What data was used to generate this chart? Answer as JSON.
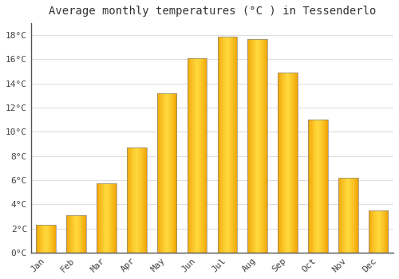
{
  "title": "Average monthly temperatures (°C ) in Tessenderlo",
  "months": [
    "Jan",
    "Feb",
    "Mar",
    "Apr",
    "May",
    "Jun",
    "Jul",
    "Aug",
    "Sep",
    "Oct",
    "Nov",
    "Dec"
  ],
  "values": [
    2.3,
    3.1,
    5.7,
    8.7,
    13.2,
    16.1,
    17.9,
    17.7,
    14.9,
    11.0,
    6.2,
    3.5
  ],
  "ylim": [
    0,
    19
  ],
  "yticks": [
    0,
    2,
    4,
    6,
    8,
    10,
    12,
    14,
    16,
    18
  ],
  "ytick_labels": [
    "0°C",
    "2°C",
    "4°C",
    "6°C",
    "8°C",
    "10°C",
    "12°C",
    "14°C",
    "16°C",
    "18°C"
  ],
  "background_color": "#FFFFFF",
  "grid_color": "#DDDDDD",
  "bar_color_center": "#FFD93D",
  "bar_color_edge": "#F0A000",
  "bar_outline_color": "#888888",
  "title_fontsize": 10,
  "bar_width": 0.65,
  "n_gradient_steps": 50
}
